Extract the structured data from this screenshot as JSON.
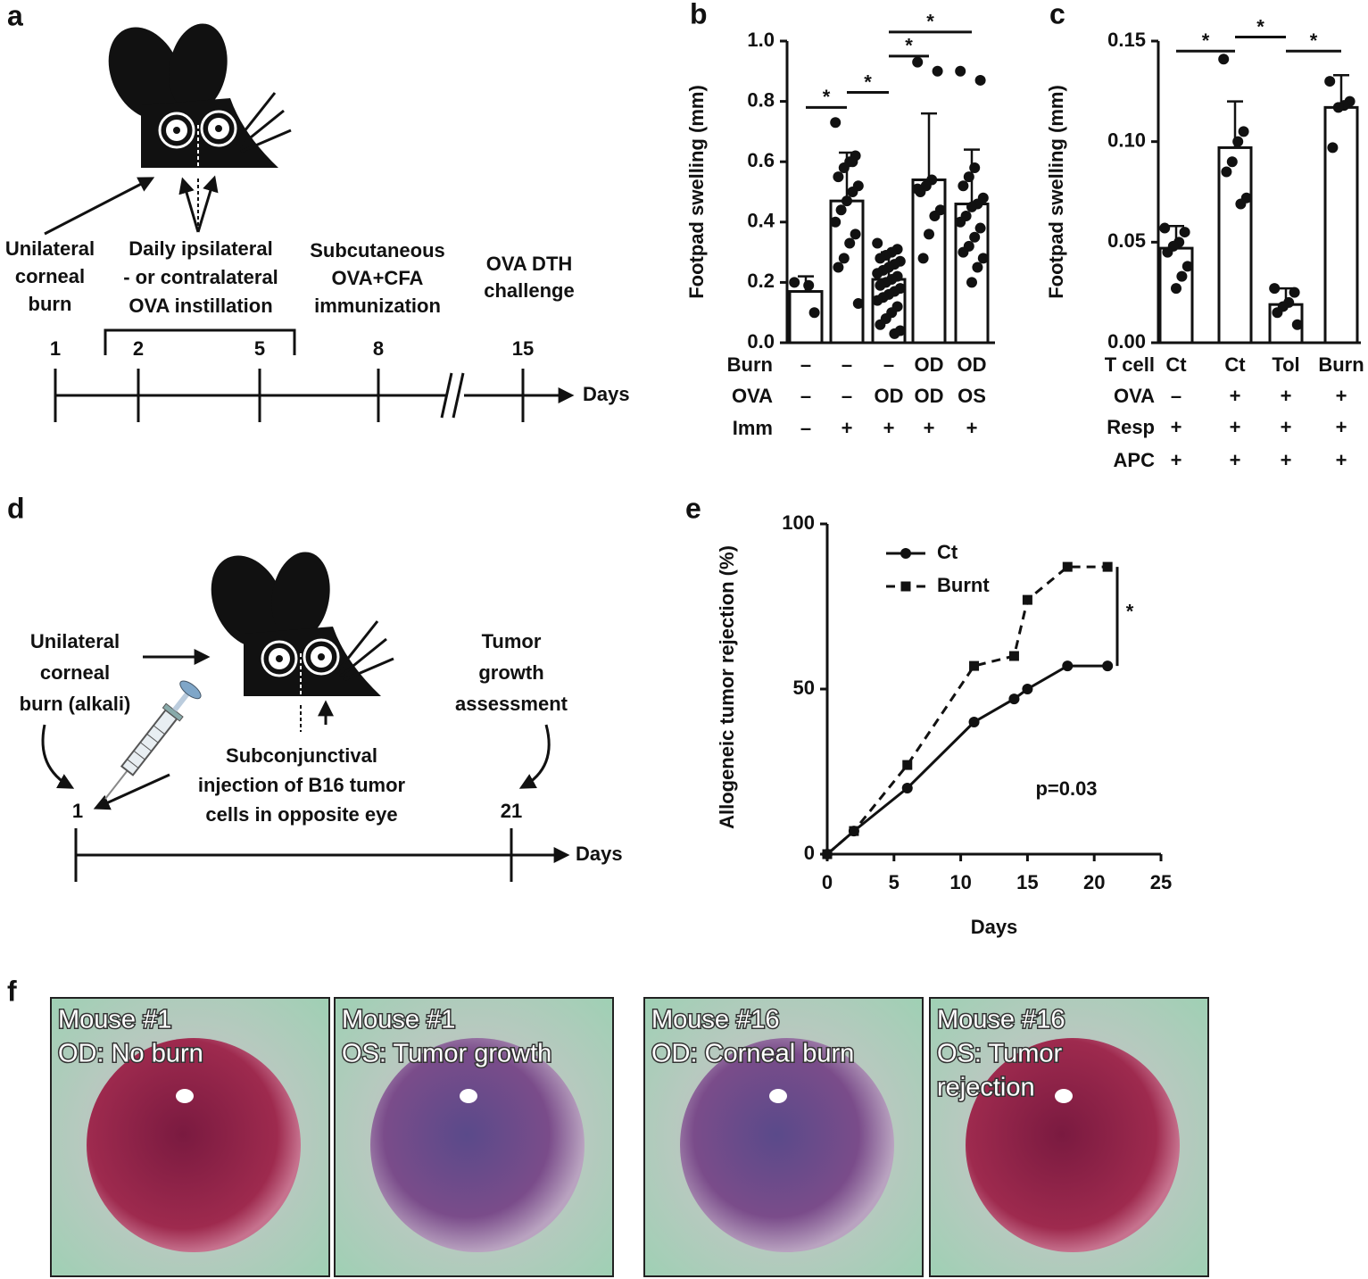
{
  "panel_labels": [
    "a",
    "b",
    "c",
    "d",
    "e",
    "f"
  ],
  "diagram_a": {
    "labels": [
      [
        "Unilateral",
        "corneal",
        "burn"
      ],
      [
        "Daily ipsilateral",
        "- or contralateral",
        "OVA instillation"
      ],
      [
        "Subcutaneous",
        "OVA+CFA",
        "immunization"
      ],
      [
        "OVA DTH",
        "challenge"
      ]
    ],
    "days": [
      "1",
      "2",
      "5",
      "8",
      "15"
    ],
    "axis_label": "Days"
  },
  "diagram_d": {
    "labels": [
      [
        "Unilateral",
        "corneal",
        "burn (alkali)"
      ],
      [
        "Subconjunctival",
        "injection of B16 tumor",
        "cells in opposite eye"
      ],
      [
        "Tumor",
        "growth",
        "assessment"
      ]
    ],
    "days": [
      "1",
      "21"
    ],
    "axis_label": "Days"
  },
  "photos": [
    {
      "caption": [
        "Mouse #1",
        "OD: No burn"
      ]
    },
    {
      "caption": [
        "Mouse #1",
        "OS: Tumor growth"
      ]
    },
    {
      "caption": [
        "Mouse #16",
        "OD: Corneal burn"
      ]
    },
    {
      "caption": [
        "Mouse #16",
        "OS: Tumor",
        "rejection"
      ]
    }
  ],
  "chart_data": [
    {
      "type": "bar",
      "ylabel": "Footpad swelling (mm)",
      "color": "#ffffff",
      "ylim": [
        0,
        1
      ],
      "yticks": [
        {
          "value": 0,
          "label": "0.0"
        },
        0.2,
        0.4,
        0.6,
        0.8,
        {
          "value": 1,
          "label": "1.0"
        }
      ],
      "values": [
        0.17,
        0.47,
        0.21,
        0.54,
        0.46
      ],
      "errors": [
        0.05,
        0.16,
        0.09,
        0.22,
        0.18
      ],
      "points": [
        [
          0.2,
          0.1,
          0.19
        ],
        [
          0.73,
          0.62,
          0.6,
          0.58,
          0.55,
          0.52,
          0.5,
          0.47,
          0.44,
          0.4,
          0.36,
          0.33,
          0.28,
          0.25,
          0.13,
          0.6
        ],
        [
          0.33,
          0.31,
          0.3,
          0.29,
          0.28,
          0.27,
          0.26,
          0.25,
          0.24,
          0.23,
          0.22,
          0.21,
          0.2,
          0.19,
          0.18,
          0.17,
          0.16,
          0.15,
          0.14,
          0.12,
          0.1,
          0.08,
          0.06,
          0.04,
          0.03
        ],
        [
          0.93,
          0.9,
          0.54,
          0.52,
          0.5,
          0.44,
          0.42,
          0.36,
          0.28,
          0.51
        ],
        [
          0.9,
          0.87,
          0.58,
          0.55,
          0.52,
          0.48,
          0.46,
          0.45,
          0.42,
          0.4,
          0.38,
          0.35,
          0.32,
          0.3,
          0.28,
          0.25,
          0.2
        ]
      ],
      "conditions": [
        {
          "label": "Burn",
          "values": [
            "–",
            "–",
            "–",
            "OD",
            "OD"
          ]
        },
        {
          "label": "OVA",
          "values": [
            "–",
            "–",
            "OD",
            "OD",
            "OS"
          ]
        },
        {
          "label": "Imm",
          "values": [
            "–",
            "+",
            "+",
            "+",
            "+"
          ]
        }
      ],
      "annotations": [
        {
          "text": "*",
          "groups": [
            0,
            1
          ],
          "y": 0.78
        },
        {
          "text": "*",
          "groups": [
            1,
            2
          ],
          "y": 0.83
        },
        {
          "text": "*",
          "groups": [
            2,
            3
          ],
          "y": 0.95
        },
        {
          "text": "*",
          "groups": [
            2,
            4
          ],
          "y": 1.03
        }
      ]
    },
    {
      "type": "bar",
      "ylabel": "Footpad swelling (mm)",
      "color": "#ffffff",
      "ylim": [
        0,
        0.15
      ],
      "yticks": [
        {
          "value": 0,
          "label": "0.00"
        },
        0.05,
        {
          "value": 0.1,
          "label": "0.10"
        },
        0.15
      ],
      "values": [
        0.047,
        0.097,
        0.019,
        0.117
      ],
      "errors": [
        0.011,
        0.023,
        0.008,
        0.016
      ],
      "points": [
        [
          0.057,
          0.055,
          0.05,
          0.048,
          0.045,
          0.038,
          0.033,
          0.027
        ],
        [
          0.141,
          0.105,
          0.1,
          0.09,
          0.085,
          0.072,
          0.069
        ],
        [
          0.027,
          0.025,
          0.02,
          0.018,
          0.015,
          0.009
        ],
        [
          0.13,
          0.12,
          0.118,
          0.117,
          0.097
        ]
      ],
      "conditions": [
        {
          "label": "T cell",
          "values": [
            "Ct",
            "Ct",
            "Tol",
            "Burn"
          ]
        },
        {
          "label": "OVA",
          "values": [
            "–",
            "+",
            "+",
            "+"
          ]
        },
        {
          "label": "Resp",
          "values": [
            "+",
            "+",
            "+",
            "+"
          ]
        },
        {
          "label": "APC",
          "values": [
            "+",
            "+",
            "+",
            "+"
          ]
        }
      ],
      "annotations": [
        {
          "text": "*",
          "groups": [
            0,
            1
          ],
          "y": 0.145
        },
        {
          "text": "*",
          "groups": [
            1,
            2
          ],
          "y": 0.152
        },
        {
          "text": "*",
          "groups": [
            2,
            3
          ],
          "y": 0.145
        }
      ]
    },
    {
      "type": "line",
      "xlabel": "Days",
      "ylabel": "Allogeneic tumor rejection (%)",
      "x": [
        0,
        2,
        6,
        11,
        14,
        15,
        18,
        21
      ],
      "xlim": [
        0,
        25
      ],
      "xticks": [
        0,
        5,
        10,
        15,
        20,
        25
      ],
      "ylim": [
        0,
        100
      ],
      "yticks": [
        0,
        50,
        100
      ],
      "series": [
        {
          "name": "Ct",
          "color": "#111111",
          "dash": false,
          "marker": "circle",
          "values": [
            0,
            7,
            20,
            40,
            47,
            50,
            57,
            57
          ]
        },
        {
          "name": "Burnt",
          "color": "#111111",
          "dash": true,
          "marker": "square",
          "values": [
            0,
            7,
            27,
            57,
            60,
            77,
            87,
            87
          ]
        }
      ],
      "annotations": [
        "p=0.03",
        "*"
      ]
    }
  ]
}
